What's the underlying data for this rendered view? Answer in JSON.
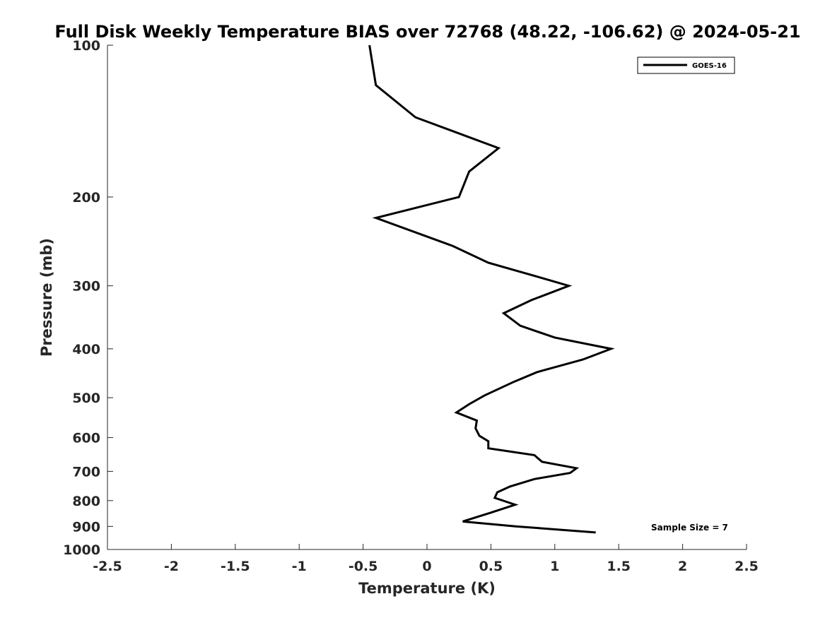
{
  "chart_data": {
    "type": "line",
    "title": "Full Disk Weekly Temperature BIAS over 72768 (48.22, -106.62) @ 2024-05-21",
    "xlabel": "Temperature (K)",
    "ylabel": "Pressure (mb)",
    "xlim": [
      -2.5,
      2.5
    ],
    "ylim": [
      100,
      1000
    ],
    "yscale": "log",
    "y_reversed": true,
    "grid": false,
    "legend_position": "top-right",
    "x_ticks": [
      -2.5,
      -2,
      -1.5,
      -1,
      -0.5,
      0,
      0.5,
      1,
      1.5,
      2,
      2.5
    ],
    "x_tick_labels": [
      "-2.5",
      "-2",
      "-1.5",
      "-1",
      "-0.5",
      "0",
      "0.5",
      "1",
      "1.5",
      "2",
      "2.5"
    ],
    "y_ticks": [
      100,
      200,
      300,
      400,
      500,
      600,
      700,
      800,
      900,
      1000
    ],
    "y_tick_labels": [
      "100",
      "200",
      "300",
      "400",
      "500",
      "600",
      "700",
      "800",
      "900",
      "1000"
    ],
    "series": [
      {
        "name": "GOES-16",
        "color": "#000000",
        "points": [
          {
            "x": -0.45,
            "y": 100
          },
          {
            "x": -0.4,
            "y": 120
          },
          {
            "x": -0.09,
            "y": 139
          },
          {
            "x": 0.56,
            "y": 160
          },
          {
            "x": 0.33,
            "y": 178
          },
          {
            "x": 0.25,
            "y": 200
          },
          {
            "x": -0.4,
            "y": 220
          },
          {
            "x": 0.2,
            "y": 250
          },
          {
            "x": 0.48,
            "y": 270
          },
          {
            "x": 0.91,
            "y": 290
          },
          {
            "x": 1.11,
            "y": 300
          },
          {
            "x": 0.82,
            "y": 320
          },
          {
            "x": 0.6,
            "y": 340
          },
          {
            "x": 0.73,
            "y": 360
          },
          {
            "x": 1.0,
            "y": 380
          },
          {
            "x": 1.44,
            "y": 400
          },
          {
            "x": 1.22,
            "y": 420
          },
          {
            "x": 0.86,
            "y": 445
          },
          {
            "x": 0.68,
            "y": 465
          },
          {
            "x": 0.45,
            "y": 495
          },
          {
            "x": 0.33,
            "y": 515
          },
          {
            "x": 0.23,
            "y": 535
          },
          {
            "x": 0.39,
            "y": 555
          },
          {
            "x": 0.38,
            "y": 575
          },
          {
            "x": 0.41,
            "y": 595
          },
          {
            "x": 0.48,
            "y": 610
          },
          {
            "x": 0.48,
            "y": 630
          },
          {
            "x": 0.84,
            "y": 650
          },
          {
            "x": 0.9,
            "y": 670
          },
          {
            "x": 1.17,
            "y": 690
          },
          {
            "x": 1.12,
            "y": 705
          },
          {
            "x": 0.84,
            "y": 725
          },
          {
            "x": 0.65,
            "y": 750
          },
          {
            "x": 0.55,
            "y": 770
          },
          {
            "x": 0.53,
            "y": 790
          },
          {
            "x": 0.69,
            "y": 815
          },
          {
            "x": 0.5,
            "y": 845
          },
          {
            "x": 0.28,
            "y": 880
          },
          {
            "x": 0.7,
            "y": 900
          },
          {
            "x": 1.32,
            "y": 925
          }
        ]
      }
    ],
    "annotations": [
      {
        "text": "Sample Size = 7",
        "x": 2.0,
        "y": 900
      }
    ]
  }
}
